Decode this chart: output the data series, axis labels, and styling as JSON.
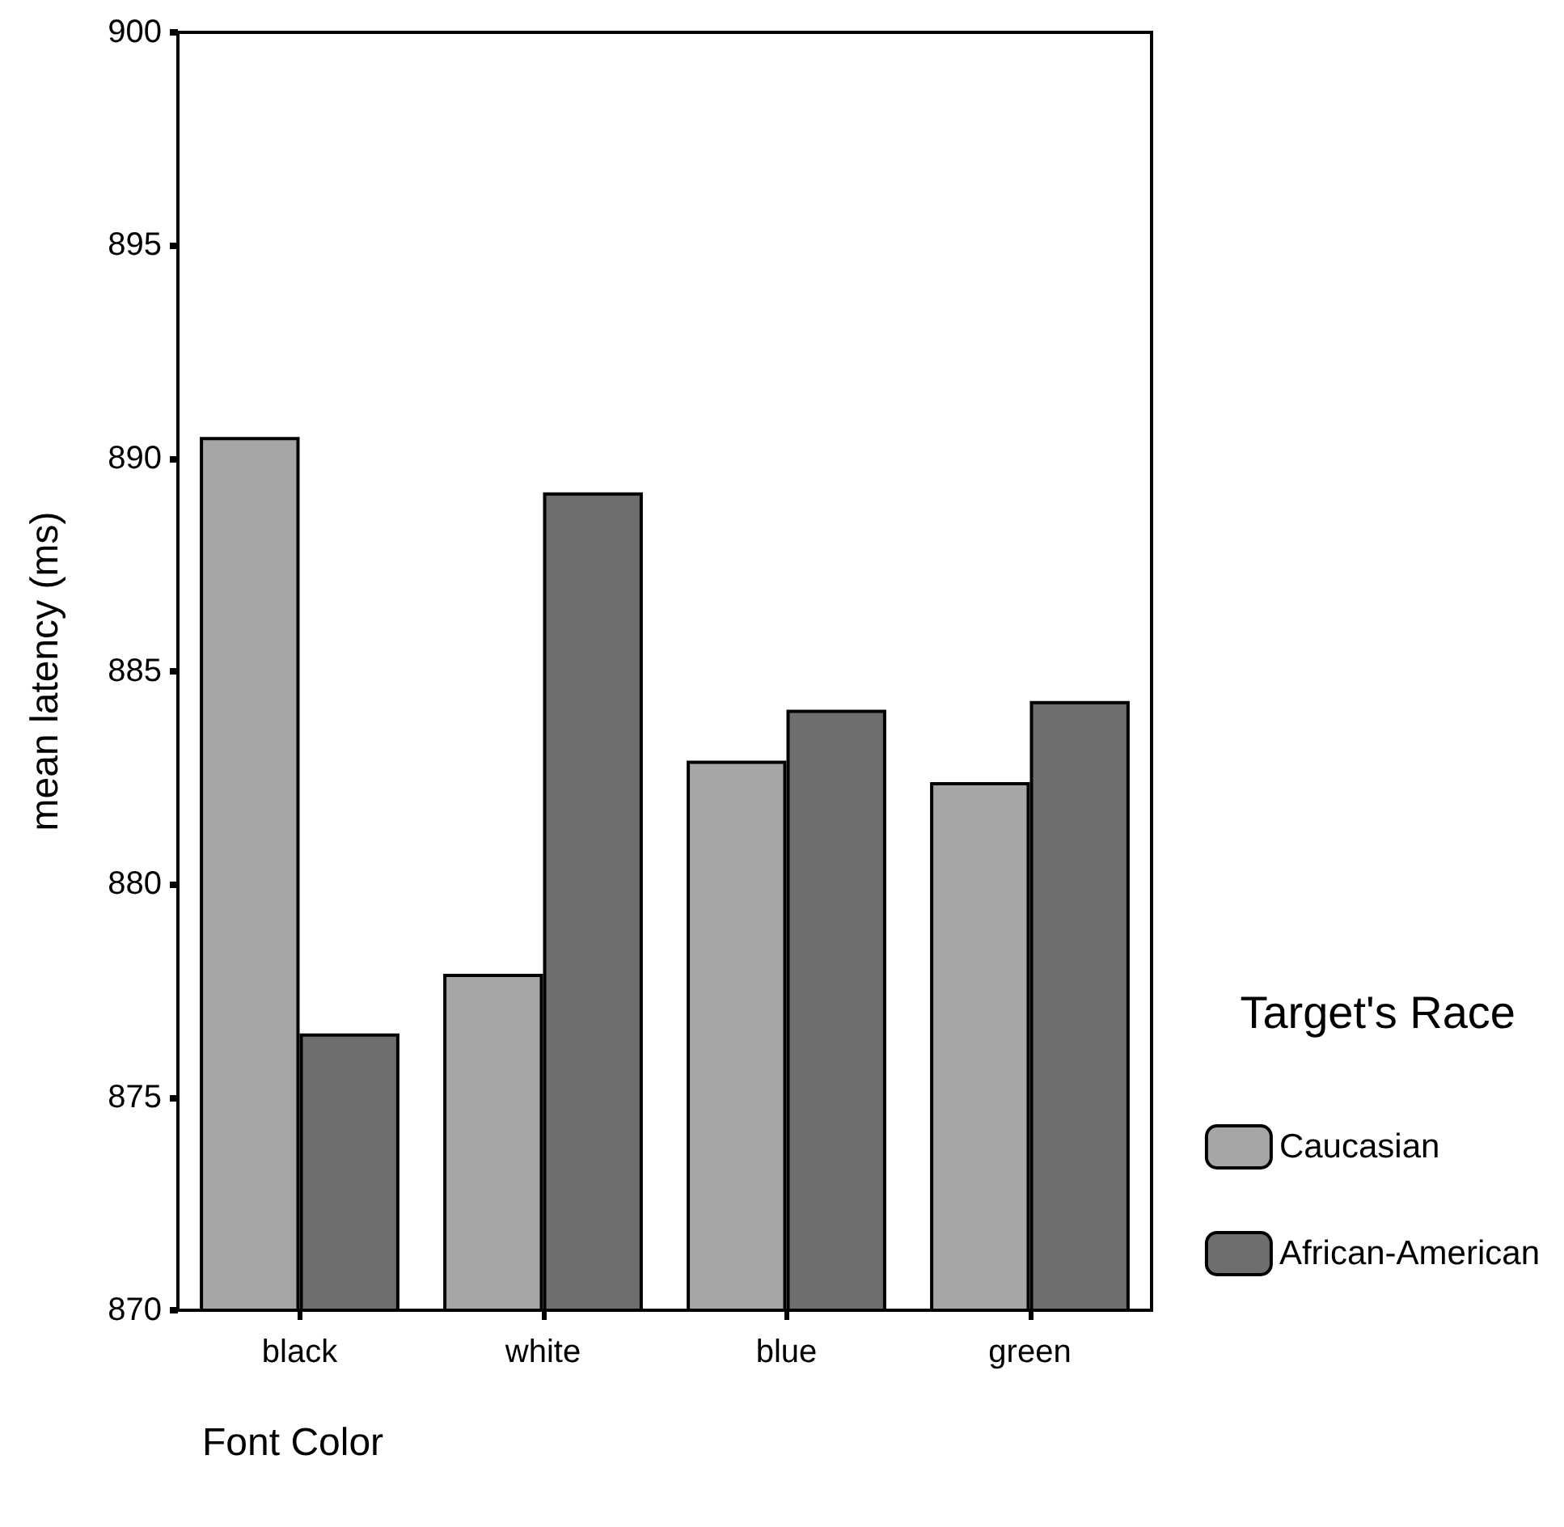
{
  "chart_data": {
    "type": "bar",
    "xlabel": "Font Color",
    "ylabel": "mean latency (ms)",
    "legend_title": "Target's Race",
    "categories": [
      "black",
      "white",
      "blue",
      "green"
    ],
    "series": [
      {
        "name": "Caucasian",
        "color": "#a6a6a6",
        "values": [
          890.5,
          877.9,
          882.9,
          882.4
        ]
      },
      {
        "name": "African-American",
        "color": "#6e6e6e",
        "values": [
          876.5,
          889.2,
          884.1,
          884.3
        ]
      }
    ],
    "ylim": [
      870,
      900
    ],
    "yticks": [
      870,
      875,
      880,
      885,
      890,
      895,
      900
    ],
    "grid": false,
    "legend": "right"
  }
}
